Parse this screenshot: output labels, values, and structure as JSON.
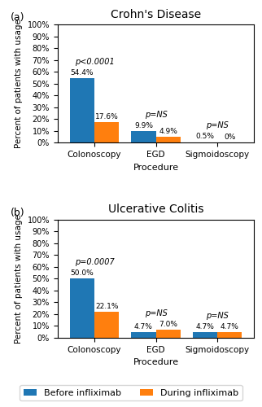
{
  "chart_data": [
    {
      "type": "bar",
      "title": "Crohn's Disease",
      "panel_label": "(a)",
      "xlabel": "Procedure",
      "ylabel": "Percent of patients with usage",
      "categories": [
        "Colonoscopy",
        "EGD",
        "Sigmoidoscopy"
      ],
      "series": [
        {
          "name": "Before infliximab",
          "values": [
            54.4,
            9.9,
            0.5
          ],
          "value_labels": [
            "54.4%",
            "9.9%",
            "0.5%"
          ]
        },
        {
          "name": "During infliximab",
          "values": [
            17.6,
            4.9,
            0.0
          ],
          "value_labels": [
            "17.6%",
            "4.9%",
            "0%"
          ]
        }
      ],
      "annotations": [
        {
          "category": "Colonoscopy",
          "text": "p<0.0001"
        },
        {
          "category": "EGD",
          "text": "p=NS"
        },
        {
          "category": "Sigmoidoscopy",
          "text": "p=NS"
        }
      ],
      "data_labels": true,
      "legend": "lower center",
      "ylim": [
        0,
        100
      ],
      "yticks": [
        {
          "value": 0,
          "label": "0%"
        },
        {
          "value": 10,
          "label": "10%"
        },
        {
          "value": 20,
          "label": "20%"
        },
        {
          "value": 30,
          "label": "30%"
        },
        {
          "value": 40,
          "label": "40%"
        },
        {
          "value": 50,
          "label": "50%"
        },
        {
          "value": 60,
          "label": "60%"
        },
        {
          "value": 70,
          "label": "70%"
        },
        {
          "value": 80,
          "label": "80%"
        },
        {
          "value": 90,
          "label": "90%"
        },
        {
          "value": 100,
          "label": "100%"
        }
      ]
    },
    {
      "type": "bar",
      "title": "Ulcerative Colitis",
      "panel_label": "(b)",
      "xlabel": "Procedure",
      "ylabel": "Percent of patients with usage",
      "categories": [
        "Colonoscopy",
        "EGD",
        "Sigmoidoscopy"
      ],
      "series": [
        {
          "name": "Before infliximab",
          "values": [
            50.0,
            4.7,
            4.7
          ],
          "value_labels": [
            "50.0%",
            "4.7%",
            "4.7%"
          ]
        },
        {
          "name": "During infliximab",
          "values": [
            22.1,
            7.0,
            4.7
          ],
          "value_labels": [
            "22.1%",
            "7.0%",
            "4.7%"
          ]
        }
      ],
      "annotations": [
        {
          "category": "Colonoscopy",
          "text": "p=0.0007"
        },
        {
          "category": "EGD",
          "text": "p=NS"
        },
        {
          "category": "Sigmoidoscopy",
          "text": "p=NS"
        }
      ],
      "data_labels": true,
      "legend": "lower center",
      "ylim": [
        0,
        100
      ],
      "yticks": [
        {
          "value": 0,
          "label": "0%"
        },
        {
          "value": 10,
          "label": "10%"
        },
        {
          "value": 20,
          "label": "20%"
        },
        {
          "value": 30,
          "label": "30%"
        },
        {
          "value": 40,
          "label": "40%"
        },
        {
          "value": 50,
          "label": "50%"
        },
        {
          "value": 60,
          "label": "60%"
        },
        {
          "value": 70,
          "label": "70%"
        },
        {
          "value": 80,
          "label": "80%"
        },
        {
          "value": 90,
          "label": "90%"
        },
        {
          "value": 100,
          "label": "100%"
        }
      ]
    }
  ]
}
